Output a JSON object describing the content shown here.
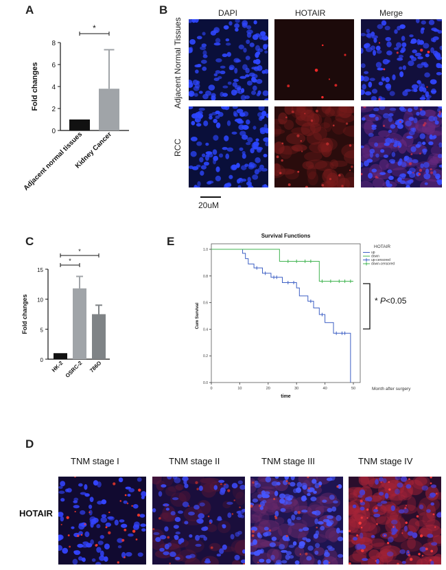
{
  "panels": {
    "A": "A",
    "B": "B",
    "C": "C",
    "D": "D",
    "E": "E"
  },
  "chart_data": [
    {
      "panel": "A",
      "type": "bar",
      "categories": [
        "Adjacent normal tissues",
        "Kidney Cancer"
      ],
      "values": [
        1.0,
        3.8
      ],
      "error_upper": [
        1.0,
        7.35
      ],
      "ylabel": "Fold changes",
      "ylim": [
        0,
        8
      ],
      "yticks": [
        "0",
        "2",
        "4",
        "6",
        "8"
      ],
      "bar_colors": [
        "#111111",
        "#a0a4a8"
      ],
      "significance": "*"
    },
    {
      "panel": "C",
      "type": "bar",
      "categories": [
        "HK-2",
        "OSRC-2",
        "786O"
      ],
      "values": [
        1.0,
        11.8,
        7.5
      ],
      "error_upper": [
        1.0,
        13.8,
        9.0
      ],
      "ylabel": "Fold changes",
      "ylim": [
        0,
        15
      ],
      "yticks": [
        "0",
        "5",
        "10",
        "15"
      ],
      "bar_colors": [
        "#111111",
        "#a0a4a8",
        "#7f8386"
      ],
      "significance": [
        "*",
        "*"
      ]
    },
    {
      "panel": "E",
      "type": "line",
      "title": "Survival Functions",
      "xlabel": "time",
      "ylabel": "Cum Survival",
      "xlim": [
        0,
        50
      ],
      "ylim": [
        0,
        1
      ],
      "xticks": [
        "0",
        "10",
        "20",
        "30",
        "40",
        "50"
      ],
      "yticks": [
        "0.0",
        "0.2",
        "0.4",
        "0.6",
        "0.8",
        "1.0"
      ],
      "legend_title": "HOTAIR",
      "legend": [
        "up",
        "down",
        "up-censored",
        "down-censored"
      ],
      "axis_note": "Month after surgery",
      "pvalue_star": "*",
      "pvalue_p": "P",
      "pvalue_rest": "<0.05",
      "series": [
        {
          "name": "up",
          "color": "#3c5fc4",
          "steps": [
            [
              0,
              1.0
            ],
            [
              11,
              0.97
            ],
            [
              12,
              0.93
            ],
            [
              13,
              0.89
            ],
            [
              15,
              0.86
            ],
            [
              18,
              0.82
            ],
            [
              21,
              0.79
            ],
            [
              25,
              0.75
            ],
            [
              30,
              0.71
            ],
            [
              31,
              0.65
            ],
            [
              34,
              0.61
            ],
            [
              36,
              0.56
            ],
            [
              38,
              0.51
            ],
            [
              40,
              0.45
            ],
            [
              43,
              0.37
            ],
            [
              49,
              0.0
            ]
          ],
          "censored": [
            [
              16,
              0.86
            ],
            [
              19,
              0.82
            ],
            [
              22,
              0.79
            ],
            [
              23,
              0.79
            ],
            [
              27,
              0.75
            ],
            [
              29,
              0.75
            ],
            [
              35,
              0.61
            ],
            [
              39,
              0.51
            ],
            [
              44,
              0.37
            ],
            [
              46,
              0.37
            ],
            [
              47,
              0.37
            ]
          ]
        },
        {
          "name": "down",
          "color": "#3fb34f",
          "steps": [
            [
              0,
              1.0
            ],
            [
              24,
              0.91
            ],
            [
              38,
              0.76
            ],
            [
              50,
              0.76
            ]
          ],
          "censored": [
            [
              27,
              0.91
            ],
            [
              30,
              0.91
            ],
            [
              33,
              0.91
            ],
            [
              35,
              0.91
            ],
            [
              39,
              0.76
            ],
            [
              42,
              0.76
            ],
            [
              45,
              0.76
            ],
            [
              47,
              0.76
            ],
            [
              49,
              0.76
            ]
          ]
        }
      ]
    }
  ],
  "panelB": {
    "columns": [
      "DAPI",
      "HOTAIR",
      "Merge"
    ],
    "rows": [
      "Adjacent Normal Tissues",
      "RCC"
    ],
    "scale_bar": "20uM"
  },
  "panelD": {
    "stages": [
      "TNM stage I",
      "TNM stage II",
      "TNM stage III",
      "TNM stage IV"
    ],
    "row_label": "HOTAIR"
  }
}
